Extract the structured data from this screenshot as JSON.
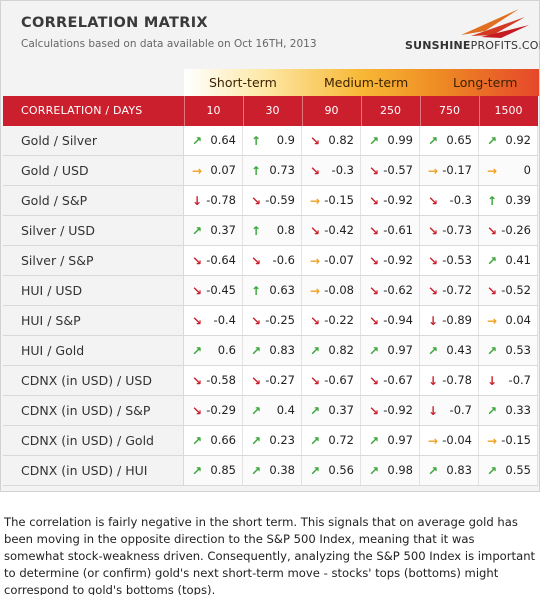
{
  "header": {
    "title": "CORRELATION MATRIX",
    "subtitle": "Calculations based on data available on Oct 16TH, 2013",
    "logo_bold": "SUNSHINE",
    "logo_thin": "PROFITS.COM"
  },
  "terms": [
    "Short-term",
    "Medium-term",
    "Long-term"
  ],
  "columns": {
    "label": "CORRELATION / DAYS",
    "days": [
      "10",
      "30",
      "90",
      "250",
      "750",
      "1500"
    ]
  },
  "colors": {
    "header_red": "#cc1f2e",
    "up": "#3aa53a",
    "down": "#c9222e",
    "flat": "#f0a01e"
  },
  "rows": [
    {
      "label": "Gold / Silver",
      "values": [
        "0.64",
        "0.9",
        "0.82",
        "0.99",
        "0.65",
        "0.92"
      ],
      "dir": [
        "up-right",
        "up",
        "down-right",
        "up-right",
        "up-right",
        "up-right"
      ]
    },
    {
      "label": "Gold / USD",
      "values": [
        "0.07",
        "0.73",
        "-0.3",
        "-0.57",
        "-0.17",
        "0"
      ],
      "dir": [
        "right",
        "up",
        "down-right",
        "down-right",
        "right",
        "right"
      ]
    },
    {
      "label": "Gold / S&P",
      "values": [
        "-0.78",
        "-0.59",
        "-0.15",
        "-0.92",
        "-0.3",
        "0.39"
      ],
      "dir": [
        "down",
        "down-right",
        "right",
        "down-right",
        "down-right",
        "up"
      ]
    },
    {
      "label": "Silver / USD",
      "values": [
        "0.37",
        "0.8",
        "-0.42",
        "-0.61",
        "-0.73",
        "-0.26"
      ],
      "dir": [
        "up-right",
        "up",
        "down-right",
        "down-right",
        "down-right",
        "down-right"
      ]
    },
    {
      "label": "Silver / S&P",
      "values": [
        "-0.64",
        "-0.6",
        "-0.07",
        "-0.92",
        "-0.53",
        "0.41"
      ],
      "dir": [
        "down-right",
        "down-right",
        "right",
        "down-right",
        "down-right",
        "up-right"
      ]
    },
    {
      "label": "HUI / USD",
      "values": [
        "-0.45",
        "0.63",
        "-0.08",
        "-0.62",
        "-0.72",
        "-0.52"
      ],
      "dir": [
        "down-right",
        "up",
        "right",
        "down-right",
        "down-right",
        "down-right"
      ]
    },
    {
      "label": "HUI / S&P",
      "values": [
        "-0.4",
        "-0.25",
        "-0.22",
        "-0.94",
        "-0.89",
        "0.04"
      ],
      "dir": [
        "down-right",
        "down-right",
        "down-right",
        "down-right",
        "down",
        "right"
      ]
    },
    {
      "label": "HUI / Gold",
      "values": [
        "0.6",
        "0.83",
        "0.82",
        "0.97",
        "0.43",
        "0.53"
      ],
      "dir": [
        "up-right",
        "up-right",
        "up-right",
        "up-right",
        "up-right",
        "up-right"
      ]
    },
    {
      "label": "CDNX (in USD) / USD",
      "values": [
        "-0.58",
        "-0.27",
        "-0.67",
        "-0.67",
        "-0.78",
        "-0.7"
      ],
      "dir": [
        "down-right",
        "down-right",
        "down-right",
        "down-right",
        "down",
        "down"
      ]
    },
    {
      "label": "CDNX (in USD) / S&P",
      "values": [
        "-0.29",
        "0.4",
        "0.37",
        "-0.92",
        "-0.7",
        "0.33"
      ],
      "dir": [
        "down-right",
        "up-right",
        "up-right",
        "down-right",
        "down",
        "up-right"
      ]
    },
    {
      "label": "CDNX (in USD) / Gold",
      "values": [
        "0.66",
        "0.23",
        "0.72",
        "0.97",
        "-0.04",
        "-0.15"
      ],
      "dir": [
        "up-right",
        "up-right",
        "up-right",
        "up-right",
        "right",
        "right"
      ]
    },
    {
      "label": "CDNX (in USD) / HUI",
      "values": [
        "0.85",
        "0.38",
        "0.56",
        "0.98",
        "0.83",
        "0.55"
      ],
      "dir": [
        "up-right",
        "up-right",
        "up-right",
        "up-right",
        "up-right",
        "up-right"
      ]
    }
  ],
  "note": "The correlation is fairly negative in the short term. This signals that on average gold has been moving in the opposite direction to the S&P 500 Index, meaning that it was somewhat stock-weakness driven. Consequently, analyzing the S&P 500 Index is important to determine (or confirm) gold's next short-term move - stocks' tops (bottoms) might correspond to gold's bottoms (tops)."
}
